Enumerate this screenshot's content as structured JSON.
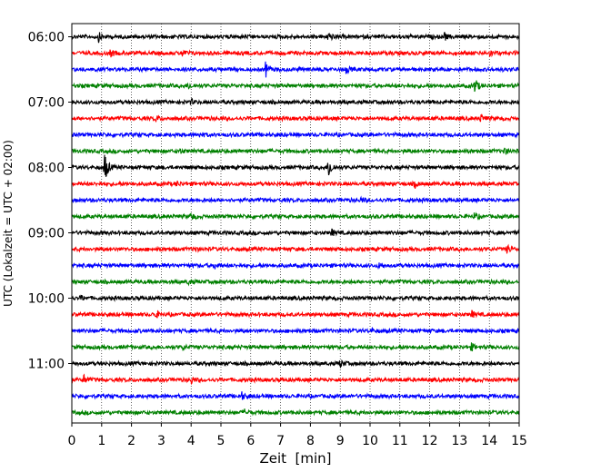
{
  "chart_data": {
    "type": "line",
    "title": "",
    "xlabel": "Zeit  [min]",
    "ylabel": "UTC (Lokalzeit = UTC + 02:00)",
    "xlim": [
      0,
      15
    ],
    "x_ticks": [
      "0",
      "1",
      "2",
      "3",
      "4",
      "5",
      "6",
      "7",
      "8",
      "9",
      "10",
      "11",
      "12",
      "13",
      "14",
      "15"
    ],
    "y_tick_labels": [
      "06:00",
      "07:00",
      "08:00",
      "09:00",
      "10:00",
      "11:00"
    ],
    "grid": "vertical dotted lines at each minute",
    "trace_interval_min": 15,
    "trace_count": 24,
    "trace_colors": [
      "#000000",
      "#ff0000",
      "#0000ff",
      "#008000"
    ],
    "events": [
      {
        "trace": 0,
        "t": 0.9,
        "amp": 0.5
      },
      {
        "trace": 0,
        "t": 8.6,
        "amp": 0.6
      },
      {
        "trace": 0,
        "t": 12.5,
        "amp": 0.4
      },
      {
        "trace": 1,
        "t": 1.3,
        "amp": 0.4
      },
      {
        "trace": 1,
        "t": 3.7,
        "amp": 0.4
      },
      {
        "trace": 1,
        "t": 14.0,
        "amp": 0.4
      },
      {
        "trace": 2,
        "t": 6.5,
        "amp": 0.9
      },
      {
        "trace": 2,
        "t": 9.2,
        "amp": 0.4
      },
      {
        "trace": 3,
        "t": 3.9,
        "amp": 0.4
      },
      {
        "trace": 3,
        "t": 13.5,
        "amp": 1.1
      },
      {
        "trace": 4,
        "t": 4.0,
        "amp": 0.3
      },
      {
        "trace": 5,
        "t": 2.8,
        "amp": 0.4
      },
      {
        "trace": 5,
        "t": 13.7,
        "amp": 0.4
      },
      {
        "trace": 6,
        "t": 4.3,
        "amp": 0.3
      },
      {
        "trace": 7,
        "t": 3.6,
        "amp": 0.3
      },
      {
        "trace": 7,
        "t": 14.5,
        "amp": 0.4
      },
      {
        "trace": 8,
        "t": 1.1,
        "amp": 2.0
      },
      {
        "trace": 8,
        "t": 8.6,
        "amp": 1.5
      },
      {
        "trace": 9,
        "t": 3.5,
        "amp": 0.3
      },
      {
        "trace": 9,
        "t": 11.5,
        "amp": 0.4
      },
      {
        "trace": 10,
        "t": 9.7,
        "amp": 0.3
      },
      {
        "trace": 11,
        "t": 4.0,
        "amp": 0.4
      },
      {
        "trace": 11,
        "t": 13.5,
        "amp": 0.4
      },
      {
        "trace": 12,
        "t": 8.7,
        "amp": 0.4
      },
      {
        "trace": 13,
        "t": 4.1,
        "amp": 0.3
      },
      {
        "trace": 13,
        "t": 14.6,
        "amp": 0.5
      },
      {
        "trace": 14,
        "t": 4.8,
        "amp": 0.4
      },
      {
        "trace": 14,
        "t": 10.3,
        "amp": 0.3
      },
      {
        "trace": 15,
        "t": 3.9,
        "amp": 0.3
      },
      {
        "trace": 16,
        "t": 0.3,
        "amp": 0.3
      },
      {
        "trace": 17,
        "t": 2.8,
        "amp": 0.5
      },
      {
        "trace": 17,
        "t": 13.4,
        "amp": 0.4
      },
      {
        "trace": 18,
        "t": 10.0,
        "amp": 0.3
      },
      {
        "trace": 19,
        "t": 3.7,
        "amp": 0.3
      },
      {
        "trace": 19,
        "t": 13.4,
        "amp": 0.4
      },
      {
        "trace": 20,
        "t": 9.0,
        "amp": 0.4
      },
      {
        "trace": 21,
        "t": 0.4,
        "amp": 0.5
      },
      {
        "trace": 21,
        "t": 4.0,
        "amp": 0.4
      },
      {
        "trace": 22,
        "t": 5.7,
        "amp": 0.4
      },
      {
        "trace": 23,
        "t": 5.8,
        "amp": 0.3
      }
    ]
  }
}
